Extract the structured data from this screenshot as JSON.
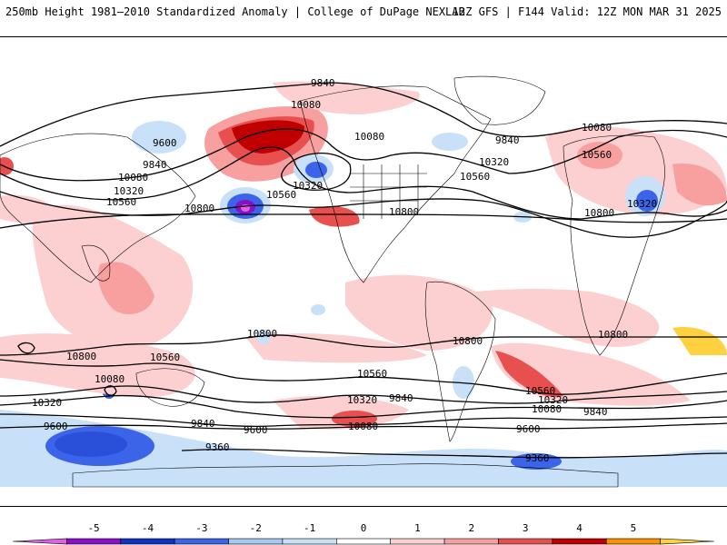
{
  "header": {
    "title_left": "250mb Height 1981–2010 Standardized Anomaly | College of DuPage NEXLAB",
    "title_right": "12Z GFS | F144 Valid: 12Z MON MAR 31 2025"
  },
  "colorbar": {
    "ticks": [
      "-5",
      "-4",
      "-3",
      "-2",
      "-1",
      "0",
      "1",
      "2",
      "3",
      "4",
      "5"
    ],
    "colors": [
      "#e060e0",
      "#8a10c8",
      "#1030c0",
      "#3c64e8",
      "#a8c8f0",
      "#c8e0f8",
      "#ffffff",
      "#fcd0d0",
      "#f8a0a0",
      "#e85050",
      "#c00000",
      "#ff9000",
      "#ffd040"
    ]
  },
  "contour_labels": [
    {
      "text": "9840",
      "id": "c1"
    },
    {
      "text": "10080",
      "id": "c2"
    },
    {
      "text": "9600",
      "id": "c3"
    },
    {
      "text": "9840",
      "id": "c4"
    },
    {
      "text": "10080",
      "id": "c5"
    },
    {
      "text": "10320",
      "id": "c6"
    },
    {
      "text": "10560",
      "id": "c7"
    },
    {
      "text": "10800",
      "id": "c8"
    },
    {
      "text": "10560",
      "id": "c9"
    },
    {
      "text": "10320",
      "id": "c10"
    },
    {
      "text": "10080",
      "id": "c11"
    },
    {
      "text": "9840",
      "id": "c12"
    },
    {
      "text": "10320",
      "id": "c13"
    },
    {
      "text": "10560",
      "id": "c14"
    },
    {
      "text": "10800",
      "id": "c15"
    },
    {
      "text": "10080",
      "id": "c16"
    },
    {
      "text": "10560",
      "id": "c17"
    },
    {
      "text": "10320",
      "id": "c18"
    },
    {
      "text": "10800",
      "id": "c19"
    },
    {
      "text": "10800",
      "id": "c20"
    },
    {
      "text": "10800",
      "id": "c21"
    },
    {
      "text": "10800",
      "id": "c22"
    },
    {
      "text": "10800",
      "id": "c23"
    },
    {
      "text": "10560",
      "id": "c24"
    },
    {
      "text": "10080",
      "id": "c25"
    },
    {
      "text": "10320",
      "id": "c26"
    },
    {
      "text": "10560",
      "id": "c27"
    },
    {
      "text": "10320",
      "id": "c28"
    },
    {
      "text": "9840",
      "id": "c29"
    },
    {
      "text": "10080",
      "id": "c30"
    },
    {
      "text": "9840",
      "id": "c31"
    },
    {
      "text": "9600",
      "id": "c32"
    },
    {
      "text": "9600",
      "id": "c33"
    },
    {
      "text": "9360",
      "id": "c34"
    },
    {
      "text": "9600",
      "id": "c35"
    },
    {
      "text": "9360",
      "id": "c36"
    },
    {
      "text": "10560",
      "id": "c37"
    },
    {
      "text": "10320",
      "id": "c38"
    },
    {
      "text": "10080",
      "id": "c39"
    },
    {
      "text": "9840",
      "id": "c40"
    }
  ]
}
